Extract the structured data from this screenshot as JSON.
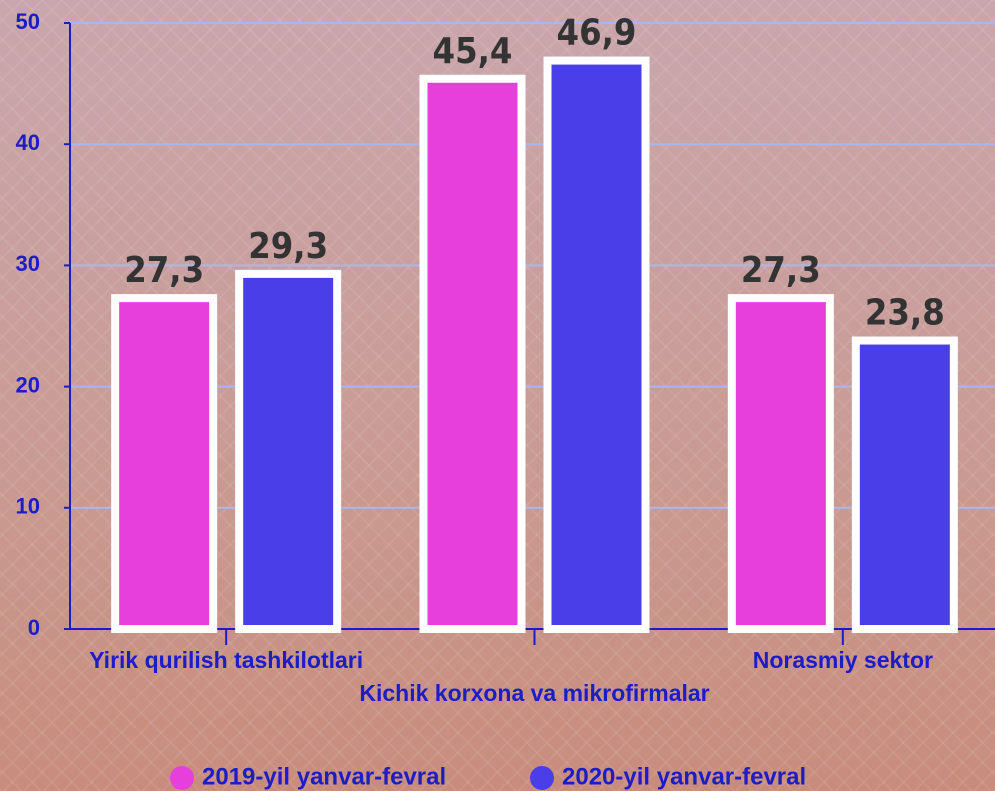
{
  "chart_data": {
    "type": "bar",
    "categories": [
      "Yirik qurilish tashkilotlari",
      "Kichik korxona va mikrofirmalar",
      "Norasmiy sektor"
    ],
    "series": [
      {
        "name": "2019-yil yanvar-fevral",
        "color": "#e63fdc",
        "values": [
          27.3,
          45.4,
          27.3
        ],
        "value_labels": [
          "27,3",
          "45,4",
          "27,3"
        ]
      },
      {
        "name": "2020-yil yanvar-fevral",
        "color": "#4a3ee8",
        "values": [
          29.3,
          46.9,
          23.8
        ],
        "value_labels": [
          "29,3",
          "46,9",
          "23,8"
        ]
      }
    ],
    "ylim": [
      0,
      50
    ],
    "yticks": [
      0,
      10,
      20,
      30,
      40,
      50
    ],
    "grid": true
  }
}
